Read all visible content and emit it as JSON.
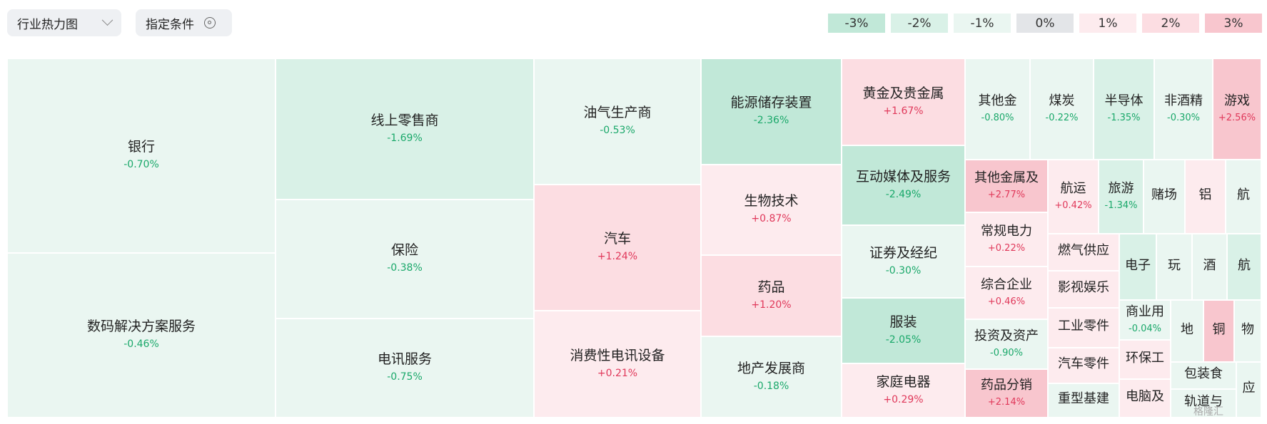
{
  "toolbar": {
    "view_select": "行业热力图",
    "condition_button": "指定条件"
  },
  "legend": [
    {
      "label": "-3%",
      "color": "#c1e8d8"
    },
    {
      "label": "-2%",
      "color": "#d9f1e7"
    },
    {
      "label": "-1%",
      "color": "#eaf6f1"
    },
    {
      "label": "0%",
      "color": "#e3e5e8"
    },
    {
      "label": "1%",
      "color": "#fdebee"
    },
    {
      "label": "2%",
      "color": "#fcdde2"
    },
    {
      "label": "3%",
      "color": "#f8c6ce"
    }
  ],
  "tiles": [
    {
      "name": "银行",
      "pct": "-0.70%"
    },
    {
      "name": "数码解决方案服务",
      "pct": "-0.46%"
    },
    {
      "name": "线上零售商",
      "pct": "-1.69%"
    },
    {
      "name": "保险",
      "pct": "-0.38%"
    },
    {
      "name": "电讯服务",
      "pct": "-0.75%"
    },
    {
      "name": "油气生产商",
      "pct": "-0.53%"
    },
    {
      "name": "汽车",
      "pct": "+1.24%"
    },
    {
      "name": "消费性电讯设备",
      "pct": "+0.21%"
    },
    {
      "name": "能源储存装置",
      "pct": "-2.36%"
    },
    {
      "name": "生物技术",
      "pct": "+0.87%"
    },
    {
      "name": "药品",
      "pct": "+1.20%"
    },
    {
      "name": "地产发展商",
      "pct": "-0.18%"
    },
    {
      "name": "黄金及贵金属",
      "pct": "+1.67%"
    },
    {
      "name": "互动媒体及服务",
      "pct": "-2.49%"
    },
    {
      "name": "证券及经纪",
      "pct": "-0.30%"
    },
    {
      "name": "服装",
      "pct": "-2.05%"
    },
    {
      "name": "家庭电器",
      "pct": "+0.29%"
    },
    {
      "name": "其他金",
      "pct": "-0.80%"
    },
    {
      "name": "煤炭",
      "pct": "-0.22%"
    },
    {
      "name": "半导体",
      "pct": "-1.35%"
    },
    {
      "name": "非酒精",
      "pct": "-0.30%"
    },
    {
      "name": "游戏",
      "pct": "+2.56%"
    },
    {
      "name": "其他金属及",
      "pct": "+2.77%"
    },
    {
      "name": "航运",
      "pct": "+0.42%"
    },
    {
      "name": "旅游",
      "pct": "-1.34%"
    },
    {
      "name": "赌场",
      "pct": ""
    },
    {
      "name": "铝",
      "pct": ""
    },
    {
      "name": "航",
      "pct": ""
    },
    {
      "name": "常规电力",
      "pct": "+0.22%"
    },
    {
      "name": "燃气供应",
      "pct": ""
    },
    {
      "name": "电子",
      "pct": ""
    },
    {
      "name": "玩",
      "pct": ""
    },
    {
      "name": "酒",
      "pct": ""
    },
    {
      "name": "航",
      "pct": ""
    },
    {
      "name": "综合企业",
      "pct": "+0.46%"
    },
    {
      "name": "影视娱乐",
      "pct": ""
    },
    {
      "name": "商业用",
      "pct": "-0.04%"
    },
    {
      "name": "地",
      "pct": ""
    },
    {
      "name": "铜",
      "pct": ""
    },
    {
      "name": "物",
      "pct": ""
    },
    {
      "name": "投资及资产",
      "pct": "-0.90%"
    },
    {
      "name": "工业零件",
      "pct": ""
    },
    {
      "name": "环保工",
      "pct": ""
    },
    {
      "name": "包装食",
      "pct": ""
    },
    {
      "name": "应",
      "pct": ""
    },
    {
      "name": "药品分销",
      "pct": "+2.14%"
    },
    {
      "name": "汽车零件",
      "pct": ""
    },
    {
      "name": "电脑及",
      "pct": ""
    },
    {
      "name": "轨道与",
      "pct": ""
    },
    {
      "name": "重型基建",
      "pct": ""
    }
  ],
  "watermark": "格隆汇"
}
